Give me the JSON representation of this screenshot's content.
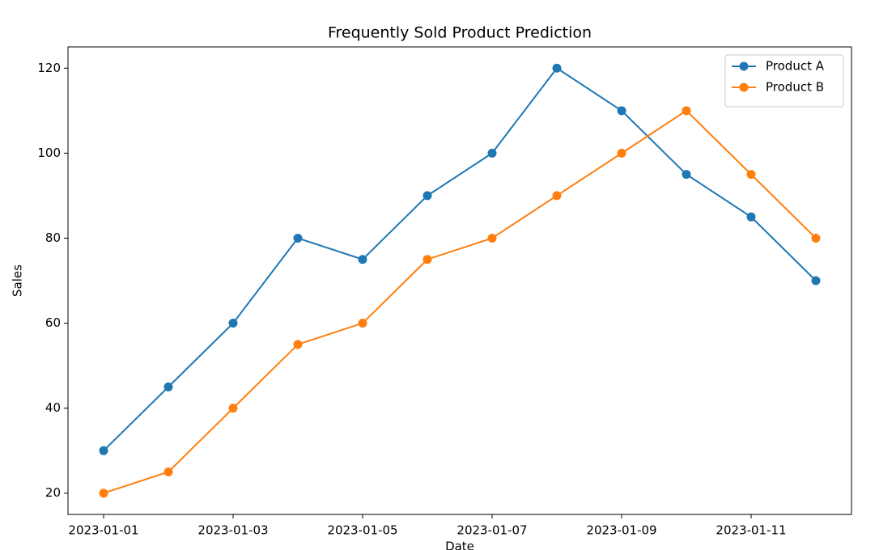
{
  "chart_data": {
    "type": "line",
    "title": "Frequently Sold Product Prediction",
    "x_label": "Date",
    "y_label": "Sales",
    "x": [
      "2023-01-01",
      "2023-01-02",
      "2023-01-03",
      "2023-01-04",
      "2023-01-05",
      "2023-01-06",
      "2023-01-07",
      "2023-01-08",
      "2023-01-09",
      "2023-01-10",
      "2023-01-11",
      "2023-01-12"
    ],
    "xticks": [
      "2023-01-01",
      "2023-01-03",
      "2023-01-05",
      "2023-01-07",
      "2023-01-09",
      "2023-01-11"
    ],
    "ylim": [
      15,
      125
    ],
    "yticks": [
      20,
      40,
      60,
      80,
      100,
      120
    ],
    "legend": "upper right",
    "series": [
      {
        "name": "Product A",
        "color": "#1f77b4",
        "values": [
          30,
          45,
          60,
          80,
          75,
          90,
          100,
          120,
          110,
          95,
          85,
          70
        ]
      },
      {
        "name": "Product B",
        "color": "#ff7f0e",
        "values": [
          20,
          25,
          40,
          55,
          60,
          75,
          80,
          90,
          100,
          110,
          95,
          80
        ]
      }
    ]
  }
}
